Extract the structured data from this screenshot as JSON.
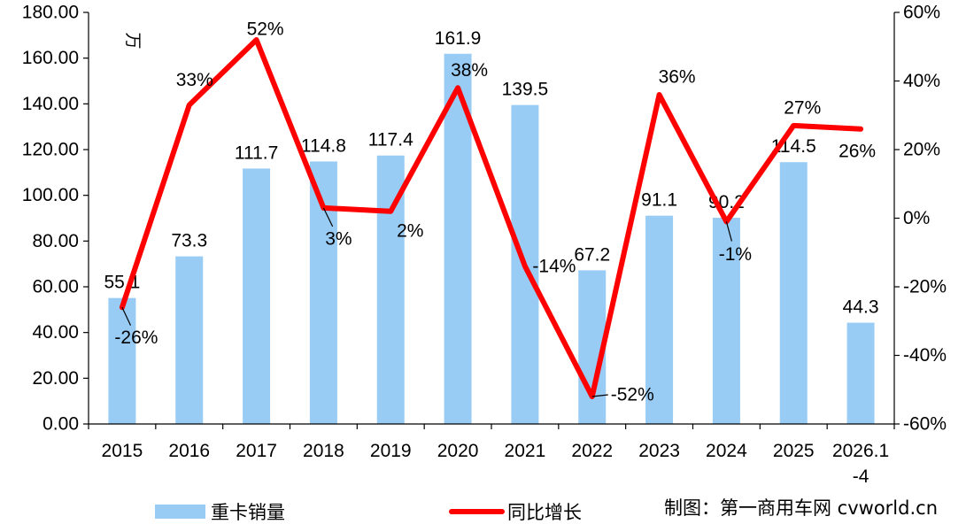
{
  "chart_data": {
    "type": "bar",
    "categories": [
      "2015",
      "2016",
      "2017",
      "2018",
      "2019",
      "2020",
      "2021",
      "2022",
      "2023",
      "2024",
      "2025",
      "2026.1-4"
    ],
    "category_lines": [
      [
        "2015"
      ],
      [
        "2016"
      ],
      [
        "2017"
      ],
      [
        "2018"
      ],
      [
        "2019"
      ],
      [
        "2020"
      ],
      [
        "2021"
      ],
      [
        "2022"
      ],
      [
        "2023"
      ],
      [
        "2024"
      ],
      [
        "2025"
      ],
      [
        "2026.1",
        "-4"
      ]
    ],
    "series": [
      {
        "name": "重卡销量",
        "type": "bar",
        "axis": "left",
        "color": "#99ccf5",
        "values": [
          55.1,
          73.3,
          111.7,
          114.8,
          117.4,
          161.9,
          139.5,
          67.2,
          91.1,
          90.2,
          114.5,
          44.3
        ],
        "labels": [
          "55.1",
          "73.3",
          "111.7",
          "114.8",
          "117.4",
          "161.9",
          "139.5",
          "67.2",
          "91.1",
          "90.2",
          "114.5",
          "44.3"
        ]
      },
      {
        "name": "同比增长",
        "type": "line",
        "axis": "right",
        "color": "#ff0000",
        "values": [
          -26,
          33,
          52,
          3,
          2,
          38,
          -14,
          -52,
          36,
          -1,
          27,
          26
        ],
        "labels": [
          "-26%",
          "33%",
          "52%",
          "3%",
          "2%",
          "38%",
          "-14%",
          "-52%",
          "36%",
          "-1%",
          "27%",
          "26%"
        ]
      }
    ],
    "y_left": {
      "unit_label": "万",
      "ylim": [
        0,
        180
      ],
      "ticks": [
        "0.00",
        "20.00",
        "40.00",
        "60.00",
        "80.00",
        "100.00",
        "120.00",
        "140.00",
        "160.00",
        "180.00"
      ]
    },
    "y_right": {
      "ylim": [
        -60,
        60
      ],
      "ticks": [
        "-60%",
        "-40%",
        "-20%",
        "0%",
        "20%",
        "40%",
        "60%"
      ]
    },
    "grid": false,
    "legend": {
      "position": "bottom"
    },
    "credit": "制图：第一商用车网  cvworld.cn"
  }
}
